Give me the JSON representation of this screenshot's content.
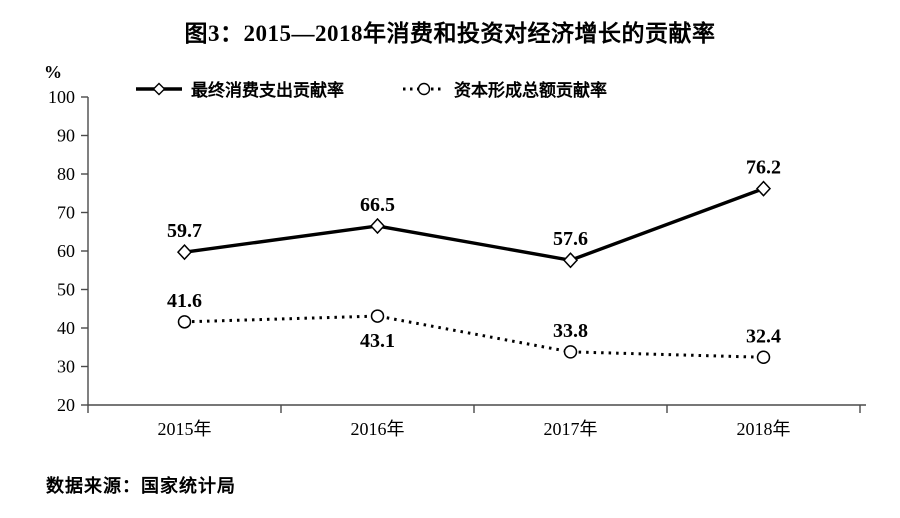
{
  "title": "图3：2015—2018年消费和投资对经济增长的贡献率",
  "source": "数据来源：国家统计局",
  "chart_data": {
    "type": "line",
    "title": "图3：2015—2018年消费和投资对经济增长的贡献率",
    "categories": [
      "2015年",
      "2016年",
      "2017年",
      "2018年"
    ],
    "series": [
      {
        "name": "最终消费支出贡献率",
        "values": [
          59.7,
          66.5,
          57.6,
          76.2
        ],
        "line_style": "solid",
        "marker": "diamond",
        "color": "#000000",
        "label_positions": [
          "above",
          "above",
          "above",
          "above"
        ]
      },
      {
        "name": "资本形成总额贡献率",
        "values": [
          41.6,
          43.1,
          33.8,
          32.4
        ],
        "line_style": "dotted",
        "marker": "circle",
        "color": "#000000",
        "label_positions": [
          "above",
          "below",
          "above",
          "above"
        ]
      }
    ],
    "ylabel": "%",
    "xlabel": "",
    "ylim": [
      20,
      100
    ],
    "ytick_step": 10,
    "grid": false,
    "legend_position": "top",
    "axis_color": "#4a4a4a",
    "text_color": "#000000"
  }
}
